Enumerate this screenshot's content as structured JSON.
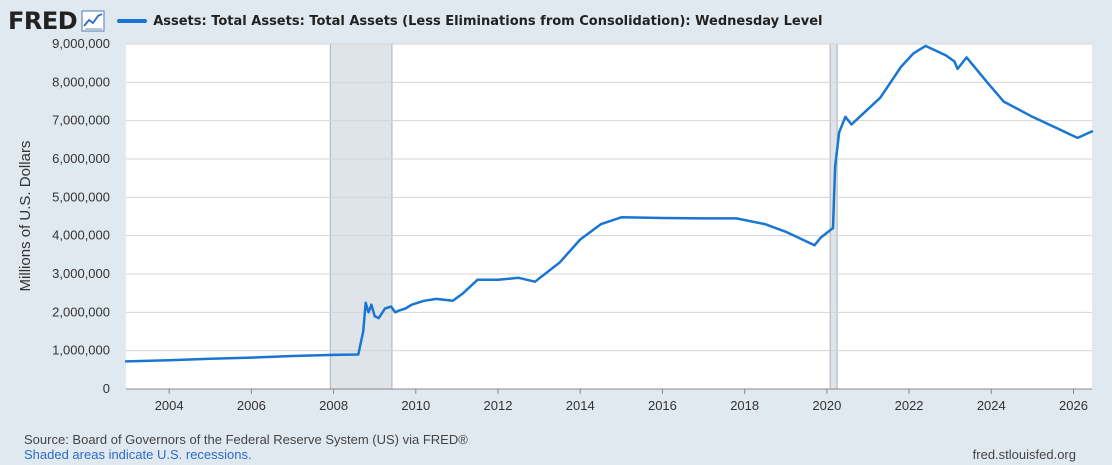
{
  "header": {
    "logo_text": "FRED",
    "logo_icon": "trend-chart-icon",
    "series_legend": "Assets: Total Assets: Total Assets (Less Eliminations from Consolidation): Wednesday Level"
  },
  "footer": {
    "source": "Source: Board of Governors of the Federal Reserve System (US) via FRED®",
    "recession_note": "Shaded areas indicate U.S. recessions.",
    "site": "fred.stlouisfed.org"
  },
  "colors": {
    "line": "#1976d2",
    "recession": "#dfe4e8",
    "background": "#e1e9f0",
    "plot": "#ffffff",
    "grid": "#d5d5d5"
  },
  "chart_data": {
    "type": "line",
    "title": "",
    "xlabel": "",
    "ylabel": "Millions of U.S. Dollars",
    "xlim": [
      2002.95,
      2026.45
    ],
    "ylim": [
      0,
      9000000
    ],
    "grid": true,
    "y_ticks": [
      0,
      1000000,
      2000000,
      3000000,
      4000000,
      5000000,
      6000000,
      7000000,
      8000000,
      9000000
    ],
    "y_tick_labels": [
      "0",
      "1,000,000",
      "2,000,000",
      "3,000,000",
      "4,000,000",
      "5,000,000",
      "6,000,000",
      "7,000,000",
      "8,000,000",
      "9,000,000"
    ],
    "x_ticks": [
      2004,
      2006,
      2008,
      2010,
      2012,
      2014,
      2016,
      2018,
      2020,
      2022,
      2024,
      2026
    ],
    "x_tick_labels": [
      "2004",
      "2006",
      "2008",
      "2010",
      "2012",
      "2014",
      "2016",
      "2018",
      "2020",
      "2022",
      "2024",
      "2026"
    ],
    "recessions": [
      [
        2007.92,
        2009.42
      ],
      [
        2020.08,
        2020.25
      ]
    ],
    "series": [
      {
        "name": "Assets: Total Assets: Total Assets (Less Eliminations from Consolidation): Wednesday Level",
        "x": [
          2002.95,
          2004.0,
          2005.0,
          2006.0,
          2007.0,
          2008.0,
          2008.6,
          2008.72,
          2008.78,
          2008.85,
          2008.92,
          2009.0,
          2009.1,
          2009.25,
          2009.4,
          2009.5,
          2009.6,
          2009.75,
          2009.9,
          2010.2,
          2010.5,
          2010.9,
          2011.15,
          2011.5,
          2012.0,
          2012.5,
          2012.9,
          2013.5,
          2014.0,
          2014.5,
          2015.0,
          2016.0,
          2017.0,
          2017.8,
          2018.5,
          2019.0,
          2019.5,
          2019.7,
          2019.85,
          2020.15,
          2020.2,
          2020.3,
          2020.45,
          2020.6,
          2020.8,
          2021.3,
          2021.8,
          2022.1,
          2022.4,
          2022.9,
          2023.1,
          2023.18,
          2023.4,
          2023.9,
          2024.3,
          2025.0,
          2025.6,
          2025.9,
          2026.1,
          2026.45
        ],
        "y": [
          720000,
          750000,
          790000,
          820000,
          860000,
          890000,
          900000,
          1500000,
          2250000,
          2000000,
          2200000,
          1900000,
          1850000,
          2100000,
          2150000,
          2000000,
          2050000,
          2100000,
          2200000,
          2300000,
          2350000,
          2300000,
          2500000,
          2850000,
          2850000,
          2900000,
          2800000,
          3300000,
          3900000,
          4300000,
          4480000,
          4460000,
          4450000,
          4450000,
          4300000,
          4100000,
          3850000,
          3750000,
          3950000,
          4200000,
          5800000,
          6700000,
          7100000,
          6900000,
          7100000,
          7600000,
          8400000,
          8750000,
          8950000,
          8700000,
          8550000,
          8350000,
          8650000,
          8000000,
          7500000,
          7100000,
          6800000,
          6650000,
          6550000,
          6720000
        ]
      }
    ]
  }
}
